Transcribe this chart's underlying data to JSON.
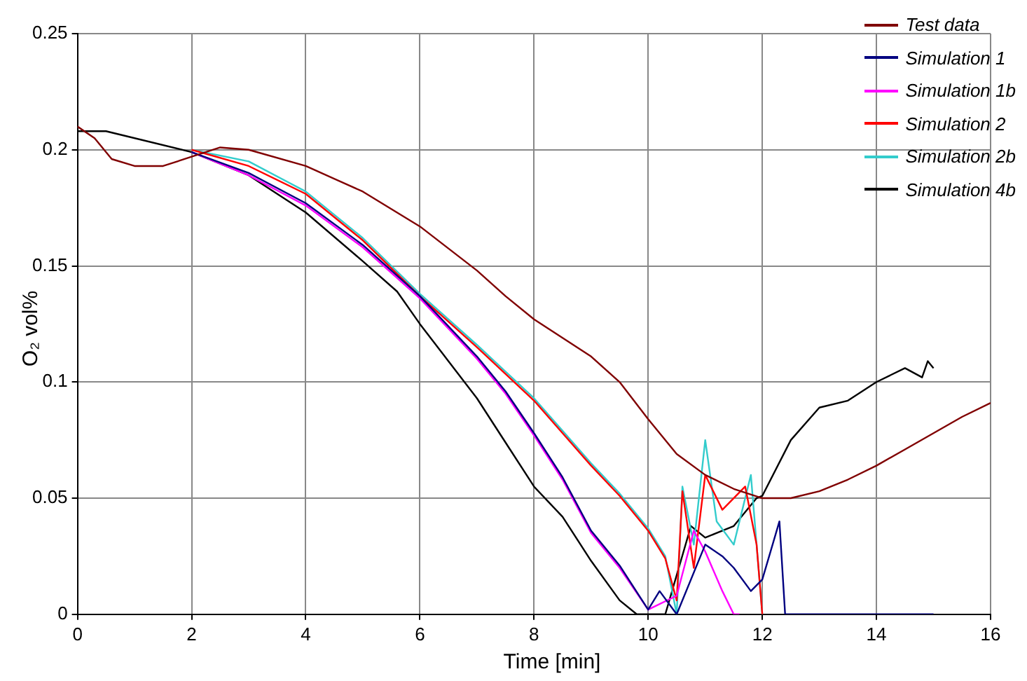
{
  "chart_data": {
    "type": "line",
    "xlabel": "Time [min]",
    "ylabel": "O₂ vol%",
    "xlim": [
      0,
      16
    ],
    "xticks": [
      0,
      2,
      4,
      6,
      8,
      10,
      12,
      14,
      16
    ],
    "ylim": [
      0,
      0.25
    ],
    "yticks": [
      0,
      0.05,
      0.1,
      0.15,
      0.2,
      0.25
    ],
    "grid": true,
    "legend": "top right",
    "marker": "none",
    "line_style": "solid",
    "series": [
      {
        "name": "Test data",
        "color": "#800000",
        "x": [
          0,
          0.3,
          0.6,
          1,
          1.5,
          2,
          2.5,
          3,
          4,
          5,
          6,
          7,
          7.5,
          8,
          9,
          9.5,
          10,
          10.5,
          11,
          11.5,
          12,
          12.5,
          13,
          13.5,
          14,
          14.5,
          15,
          15.5,
          16
        ],
        "values": [
          0.21,
          0.205,
          0.196,
          0.193,
          0.193,
          0.197,
          0.201,
          0.2,
          0.193,
          0.182,
          0.167,
          0.148,
          0.137,
          0.127,
          0.111,
          0.1,
          0.084,
          0.069,
          0.06,
          0.054,
          0.05,
          0.05,
          0.053,
          0.058,
          0.064,
          0.071,
          0.078,
          0.085,
          0.091
        ]
      },
      {
        "name": "Simulation 1",
        "color": "#000080",
        "x": [
          2,
          3,
          4,
          5,
          6,
          7,
          7.5,
          8,
          8.5,
          9,
          9.5,
          10,
          10.2,
          10.5,
          11,
          11.3,
          11.5,
          11.8,
          12,
          12.3,
          12.4,
          12.5,
          15
        ],
        "values": [
          0.199,
          0.19,
          0.177,
          0.159,
          0.137,
          0.111,
          0.096,
          0.078,
          0.059,
          0.036,
          0.021,
          0.002,
          0.01,
          0,
          0.03,
          0.025,
          0.02,
          0.01,
          0.015,
          0.04,
          0,
          0,
          0
        ]
      },
      {
        "name": "Simulation 1b",
        "color": "#ff00ff",
        "x": [
          2,
          3,
          4,
          5,
          6,
          7,
          7.5,
          8,
          8.5,
          9,
          9.5,
          10,
          10.5,
          10.8,
          11,
          11.3,
          11.5,
          11.6
        ],
        "values": [
          0.199,
          0.189,
          0.176,
          0.158,
          0.136,
          0.11,
          0.095,
          0.077,
          0.058,
          0.035,
          0.02,
          0.002,
          0.008,
          0.036,
          0.027,
          0.01,
          0,
          0
        ]
      },
      {
        "name": "Simulation 2",
        "color": "#ff0000",
        "x": [
          2,
          3,
          4,
          5,
          6,
          7,
          8,
          8.5,
          9,
          9.5,
          10,
          10.3,
          10.5,
          10.6,
          10.8,
          11,
          11.3,
          11.7,
          11.9,
          12
        ],
        "values": [
          0.2,
          0.193,
          0.181,
          0.161,
          0.137,
          0.115,
          0.092,
          0.078,
          0.064,
          0.051,
          0.036,
          0.024,
          0.006,
          0.053,
          0.02,
          0.06,
          0.045,
          0.055,
          0.03,
          0
        ]
      },
      {
        "name": "Simulation 2b",
        "color": "#33cccc",
        "x": [
          2,
          3,
          4,
          5,
          6,
          7,
          8,
          8.5,
          9,
          9.5,
          10,
          10.3,
          10.5,
          10.6,
          10.8,
          11,
          11.2,
          11.5,
          11.8,
          12
        ],
        "values": [
          0.2,
          0.195,
          0.182,
          0.162,
          0.138,
          0.116,
          0.093,
          0.079,
          0.065,
          0.052,
          0.037,
          0.025,
          0,
          0.055,
          0.03,
          0.075,
          0.04,
          0.03,
          0.06,
          0
        ]
      },
      {
        "name": "Simulation 4b",
        "color": "#000000",
        "x": [
          0,
          0.5,
          2,
          3,
          4,
          5,
          5.6,
          6,
          6.5,
          7,
          7.5,
          8,
          8.5,
          9,
          9.5,
          9.8,
          10.3,
          10.75,
          11,
          11.5,
          11.9,
          12,
          12.5,
          13,
          13.5,
          14,
          14.5,
          14.8,
          14.9,
          15
        ],
        "values": [
          0.208,
          0.208,
          0.199,
          0.189,
          0.173,
          0.152,
          0.139,
          0.125,
          0.109,
          0.093,
          0.074,
          0.055,
          0.042,
          0.023,
          0.006,
          0,
          0,
          0.038,
          0.033,
          0.038,
          0.05,
          0.051,
          0.075,
          0.089,
          0.092,
          0.1,
          0.106,
          0.102,
          0.109,
          0.106
        ]
      }
    ]
  }
}
